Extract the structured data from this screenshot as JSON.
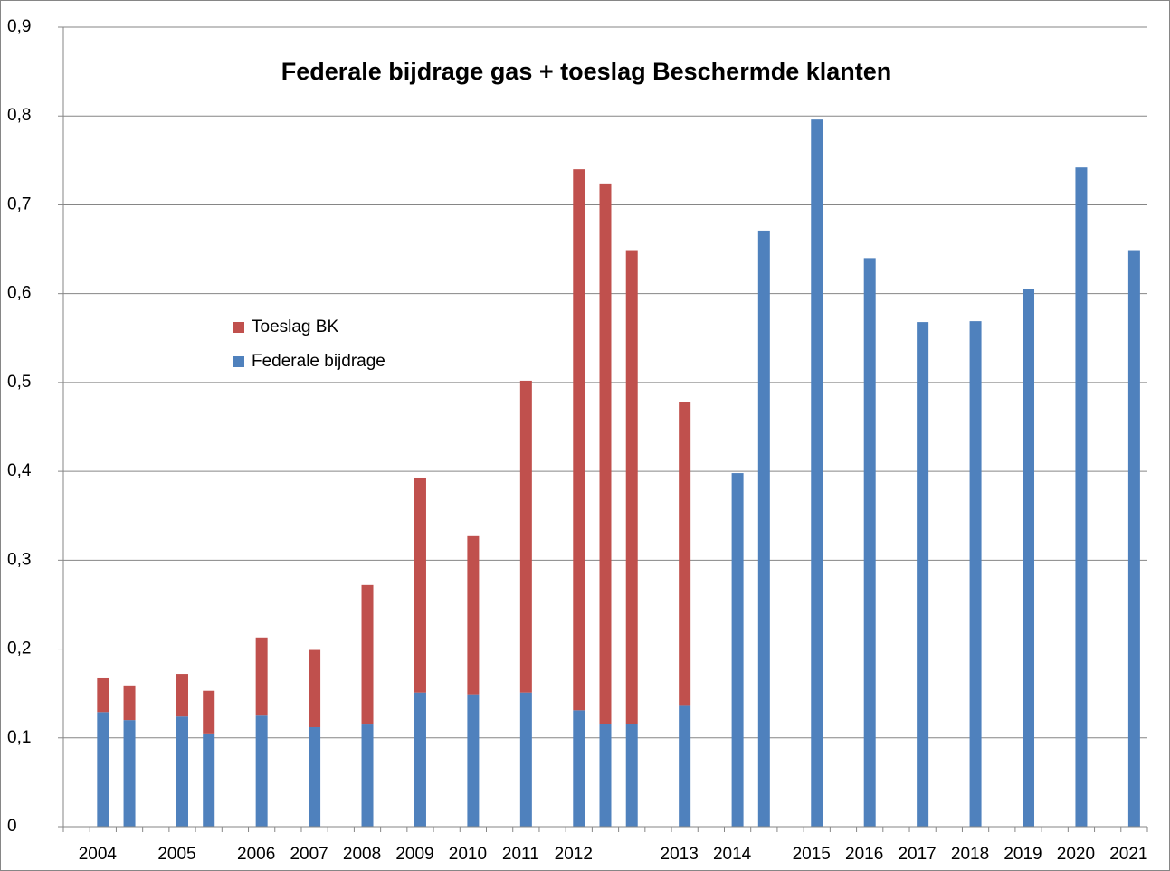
{
  "chart_data": {
    "type": "stacked_bar",
    "title": "Federale bijdrage gas + toeslag Beschermde klanten",
    "categories": [
      null,
      "2004",
      null,
      null,
      "2005",
      null,
      null,
      "2006",
      null,
      "2007",
      null,
      "2008",
      null,
      "2009",
      null,
      "2010",
      null,
      "2011",
      null,
      "2012",
      null,
      null,
      null,
      "2013",
      null,
      "2014",
      null,
      null,
      "2015",
      null,
      "2016",
      null,
      "2017",
      null,
      "2018",
      null,
      "2019",
      null,
      "2020",
      null,
      "2021"
    ],
    "series": [
      {
        "name": "Federale bijdrage",
        "color": "#4f81bd",
        "values": [
          null,
          0.129,
          0.12,
          null,
          0.124,
          0.105,
          null,
          0.125,
          null,
          0.112,
          null,
          0.115,
          null,
          0.151,
          null,
          0.149,
          null,
          0.151,
          null,
          0.131,
          0.116,
          0.116,
          null,
          0.136,
          null,
          0.398,
          0.671,
          null,
          0.796,
          null,
          0.64,
          null,
          0.568,
          null,
          0.569,
          null,
          0.605,
          null,
          0.742,
          null,
          0.649
        ]
      },
      {
        "name": "Toeslag BK",
        "color": "#c0504d",
        "values": [
          null,
          0.038,
          0.039,
          null,
          0.048,
          0.048,
          null,
          0.088,
          null,
          0.087,
          null,
          0.157,
          null,
          0.242,
          null,
          0.178,
          null,
          0.351,
          null,
          0.609,
          0.608,
          0.533,
          null,
          0.342,
          null,
          null,
          null,
          null,
          null,
          null,
          null,
          null,
          null,
          null,
          null,
          null,
          null,
          null,
          null,
          null,
          null
        ]
      }
    ],
    "ylim": [
      0,
      0.9
    ],
    "yticks": [
      0,
      {
        "value": 0.1,
        "label": "0,1"
      },
      {
        "value": 0.2,
        "label": "0,2"
      },
      {
        "value": 0.3,
        "label": "0,3"
      },
      {
        "value": 0.4,
        "label": "0,4"
      },
      {
        "value": 0.5,
        "label": "0,5"
      },
      {
        "value": 0.6,
        "label": "0,6"
      },
      {
        "value": 0.7,
        "label": "0,7"
      },
      {
        "value": 0.8,
        "label": "0,8"
      },
      {
        "value": 0.9,
        "label": "0,9"
      }
    ],
    "grid": true
  }
}
